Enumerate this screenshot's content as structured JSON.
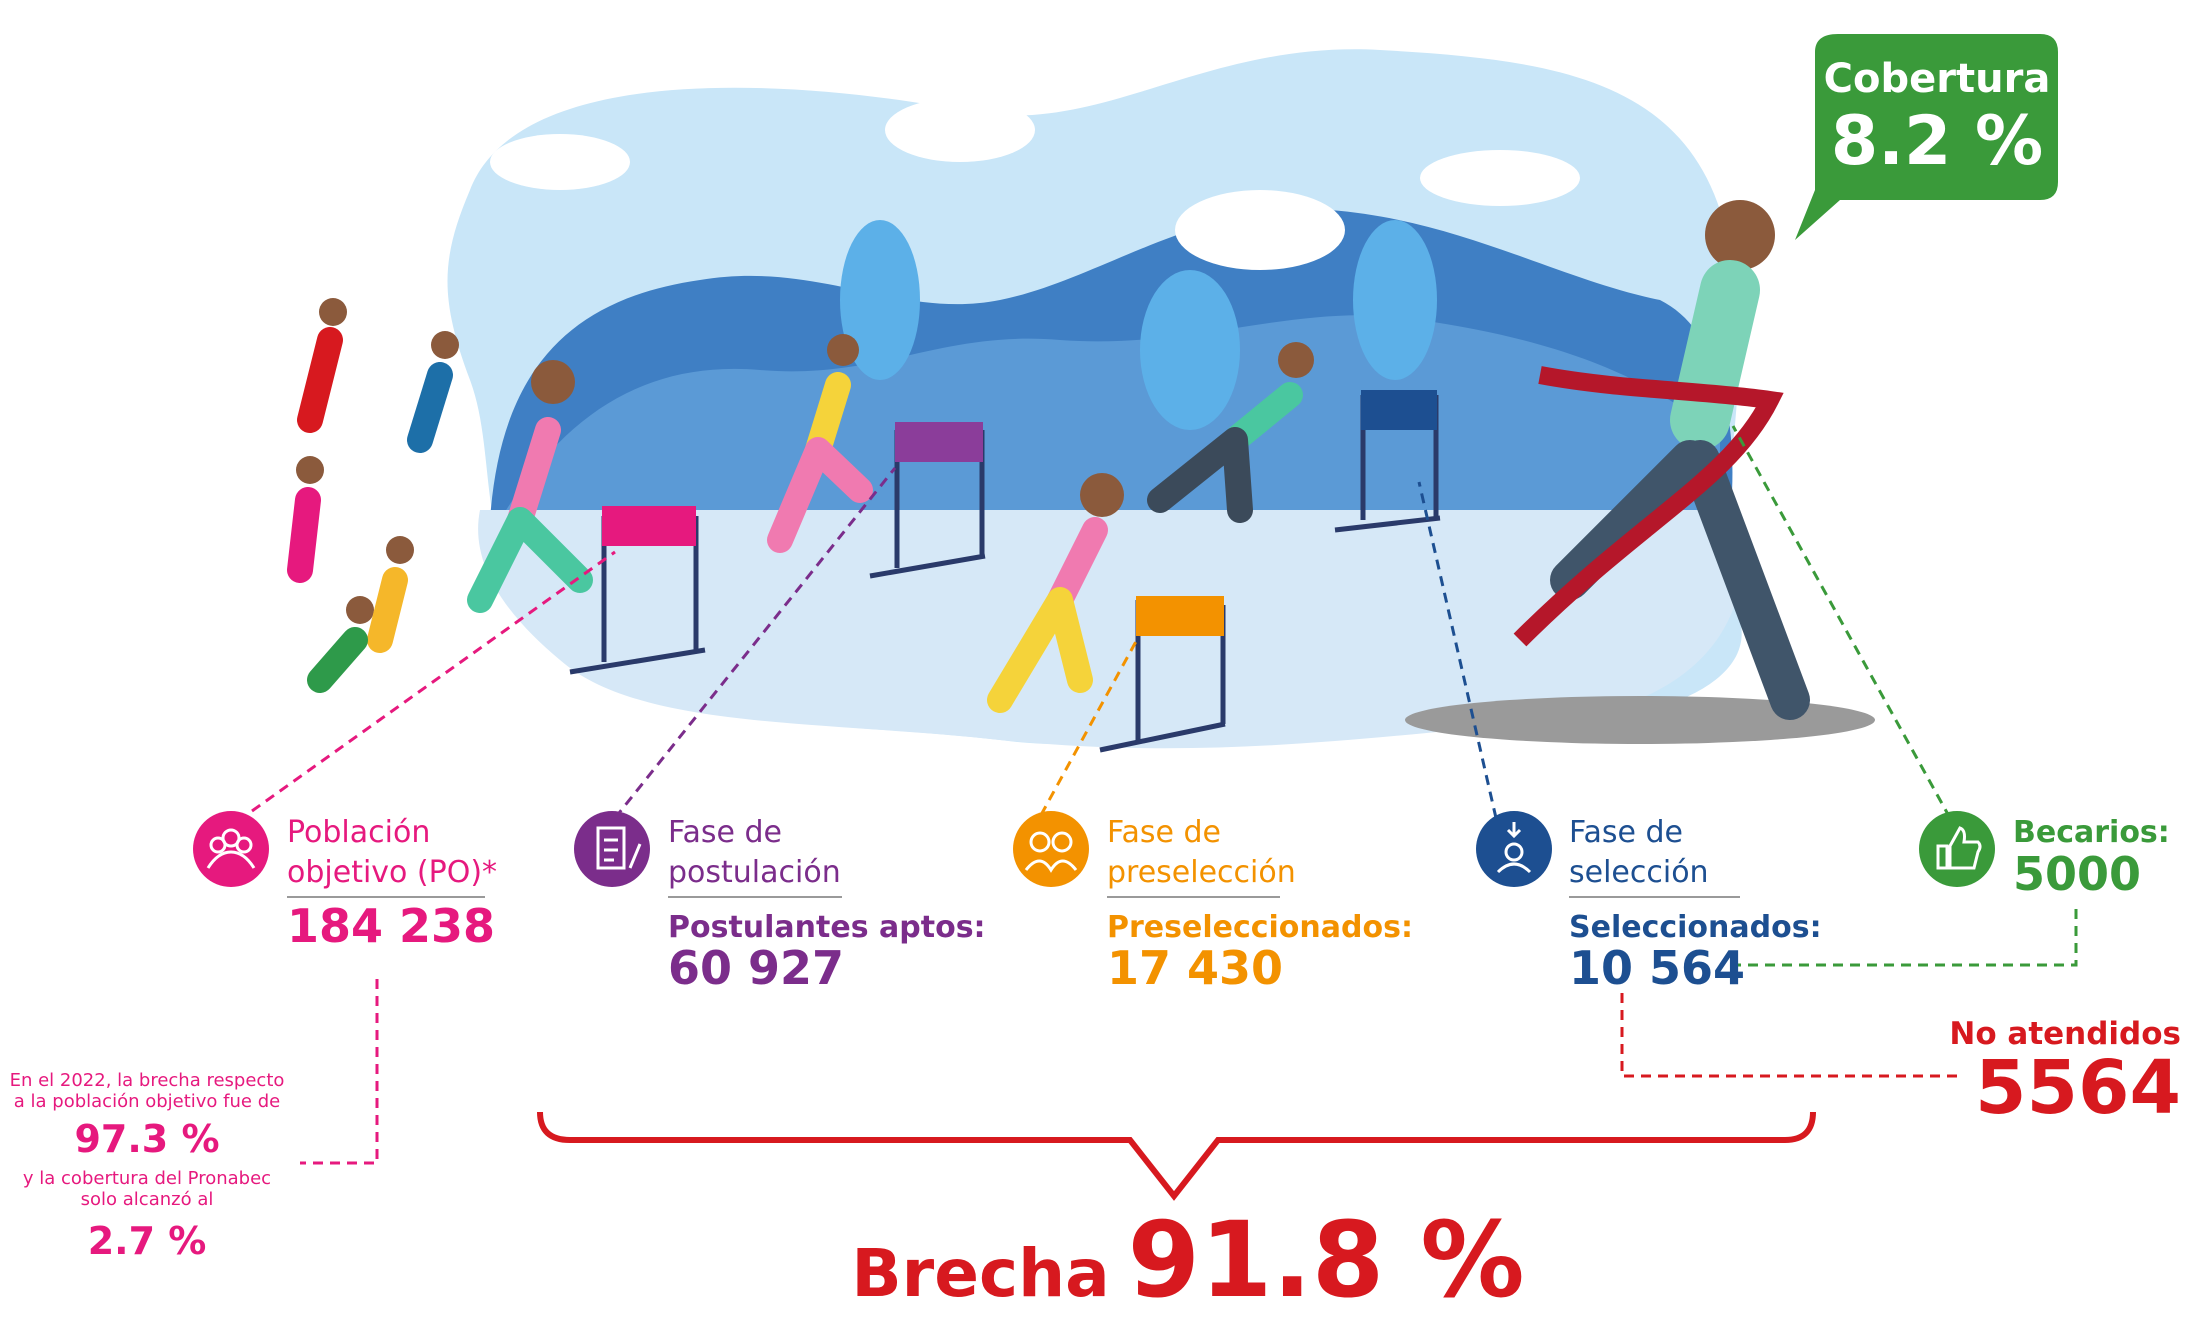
{
  "coverage": {
    "label": "Cobertura",
    "value": "8.2 %"
  },
  "stages": [
    {
      "title": [
        "Población",
        "objetivo (PO)*"
      ],
      "value": "184 238"
    },
    {
      "title": [
        "Fase de",
        "postulación"
      ],
      "subtitle": "Postulantes aptos:",
      "value": "60 927"
    },
    {
      "title": [
        "Fase de",
        "preselección"
      ],
      "subtitle": "Preseleccionados:",
      "value": "17 430"
    },
    {
      "title": [
        "Fase de",
        "selección"
      ],
      "subtitle": "Seleccionados:",
      "value": "10 564"
    },
    {
      "title": [
        "Becarios:"
      ],
      "value": "5000"
    }
  ],
  "not_attended": {
    "label": "No atendidos",
    "value": "5564"
  },
  "note": {
    "lines": [
      "En el 2022, la brecha respecto",
      "a la población objetivo fue de"
    ],
    "gap": "97.3 %",
    "lines2": [
      "y la cobertura del Pronabec",
      "solo alcanzó al"
    ],
    "coverage": "2.7 %"
  },
  "gap": {
    "label": "Brecha",
    "value": "91.8 %"
  }
}
